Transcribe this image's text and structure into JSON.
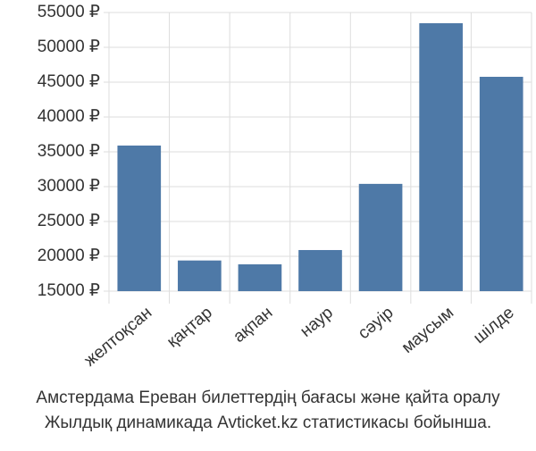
{
  "chart_data": {
    "type": "bar",
    "categories": [
      "желтоқсан",
      "қаңтар",
      "ақпан",
      "наур",
      "сәуір",
      "маусым",
      "шілде"
    ],
    "values": [
      35900,
      19400,
      18850,
      20900,
      30400,
      53460,
      45770
    ],
    "color": "#4e79a7",
    "ylim": [
      15000,
      55000
    ],
    "yticks": [
      {
        "value": 15000,
        "label": "15000 ₽"
      },
      {
        "value": 20000,
        "label": "20000 ₽"
      },
      {
        "value": 25000,
        "label": "25000 ₽"
      },
      {
        "value": 30000,
        "label": "30000 ₽"
      },
      {
        "value": 35000,
        "label": "35000 ₽"
      },
      {
        "value": 40000,
        "label": "40000 ₽"
      },
      {
        "value": 45000,
        "label": "45000 ₽"
      },
      {
        "value": 50000,
        "label": "50000 ₽"
      },
      {
        "value": 55000,
        "label": "55000 ₽"
      }
    ],
    "grid": true,
    "caption": [
      "Амстердама Ереван билеттердің бағасы және қайта оралу",
      "Жылдық динамикада Avticket.kz статистикасы бойынша."
    ]
  }
}
